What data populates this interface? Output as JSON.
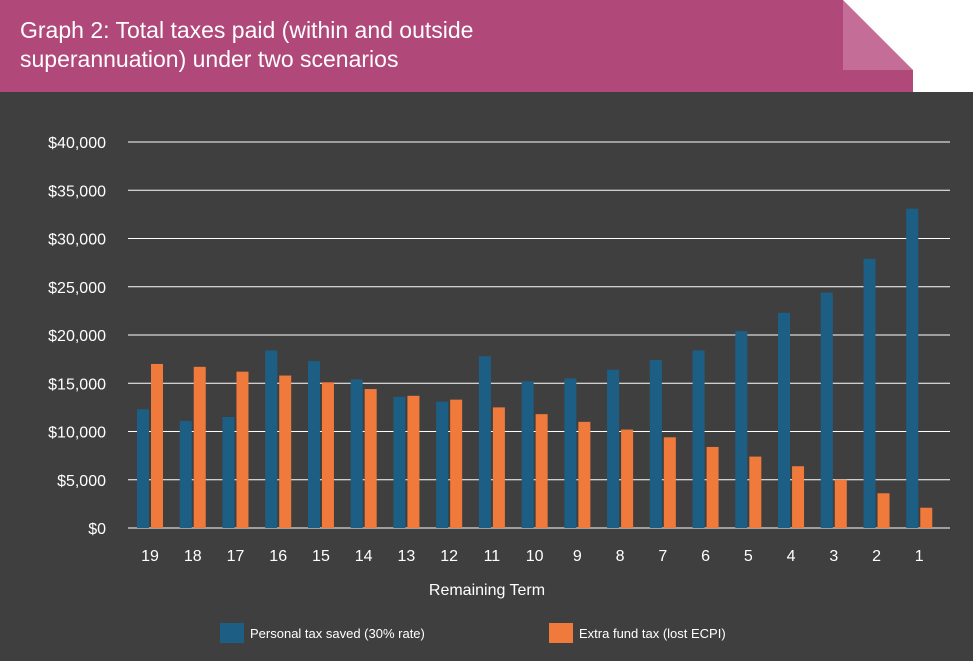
{
  "header": {
    "title_line1": "Graph 2: Total taxes paid (within and outside",
    "title_line2": "superannuation) under two scenarios"
  },
  "colors": {
    "banner": "#b0487a",
    "background": "#3f3f3f",
    "series1": "#1d5f84",
    "series2": "#ef7a3c",
    "grid": "#ffffff"
  },
  "chart_data": {
    "type": "bar",
    "title": "Graph 2: Total taxes paid (within and outside superannuation) under two scenarios",
    "xlabel": "Remaining Term",
    "ylabel": "",
    "ylim": [
      0,
      40000
    ],
    "yticks": [
      "$0",
      "$5,000",
      "$10,000",
      "$15,000",
      "$20,000",
      "$25,000",
      "$30,000",
      "$35,000",
      "$40,000"
    ],
    "ytick_values": [
      0,
      5000,
      10000,
      15000,
      20000,
      25000,
      30000,
      35000,
      40000
    ],
    "grid": true,
    "legend_position": "bottom",
    "categories": [
      "19",
      "18",
      "17",
      "16",
      "15",
      "14",
      "13",
      "12",
      "11",
      "10",
      "9",
      "8",
      "7",
      "6",
      "5",
      "4",
      "3",
      "2",
      "1"
    ],
    "series": [
      {
        "name": "Personal tax saved (30% rate)",
        "values": [
          12300,
          11100,
          11500,
          18400,
          17300,
          15400,
          13600,
          13100,
          17800,
          15200,
          15500,
          16400,
          17400,
          18400,
          20400,
          22300,
          24400,
          27900,
          33100
        ]
      },
      {
        "name": "Extra fund tax (lost ECPI)",
        "values": [
          17000,
          16700,
          16200,
          15800,
          15100,
          14400,
          13700,
          13300,
          12500,
          11800,
          11000,
          10200,
          9400,
          8400,
          7400,
          6400,
          5000,
          3600,
          2100
        ]
      }
    ]
  }
}
